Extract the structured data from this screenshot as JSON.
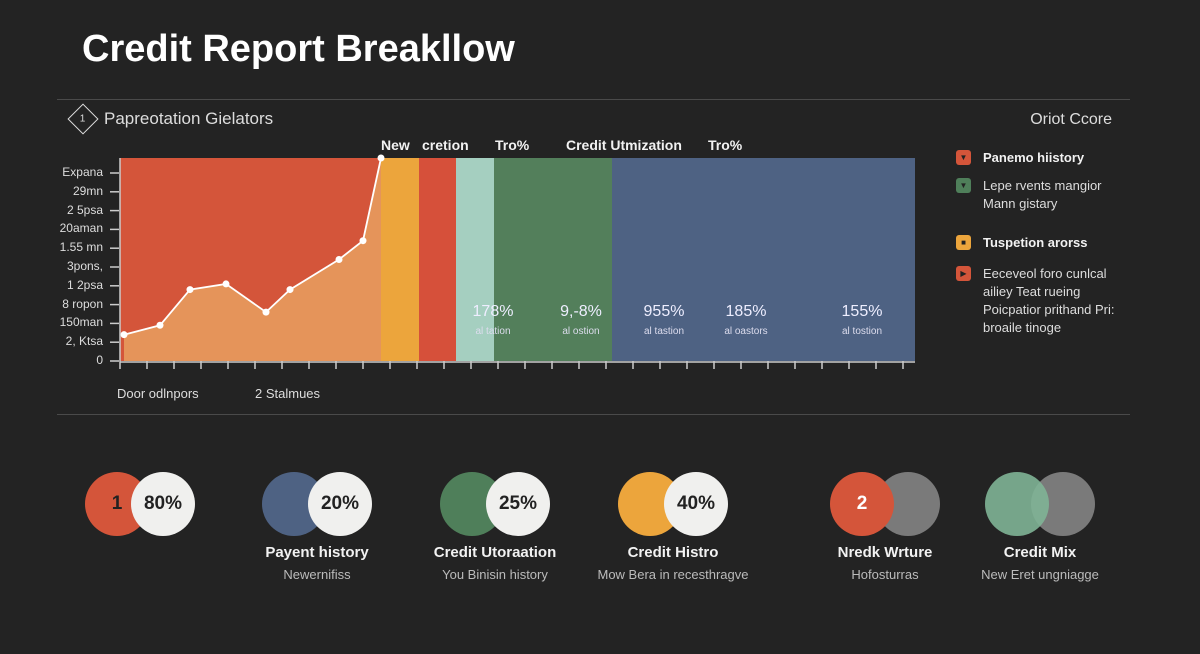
{
  "title": "Credit Report Breakllow",
  "subtitle": "Papreotation Gielators",
  "subtitle_icon": "diamond-info-icon",
  "score_label": "Oriot Ccore",
  "chart_data": {
    "type": "area",
    "band_labels": [
      "New",
      "cretion",
      "Tro%",
      "Credit Utmization",
      "Tro%"
    ],
    "yticks": [
      "Expana",
      "29mn",
      "2 5psa",
      "20aman",
      "1.55 mn",
      "3pons,",
      "1 2psa",
      "8 ropon",
      "150man",
      "2, Ktsa",
      "0"
    ],
    "ylim": [
      0,
      10.8
    ],
    "series": [
      {
        "values": [
          1.4,
          1.9,
          3.8,
          4.1,
          2.6,
          3.8,
          5.4,
          6.4,
          10.8
        ],
        "color": "#e8a060"
      }
    ],
    "bands": [
      {
        "color": "#d4553a"
      },
      {
        "color": "#eca53c"
      },
      {
        "color": "#d6503a"
      },
      {
        "color": "#a5cfc0"
      },
      {
        "color": "#537f5b"
      },
      {
        "color": "#4e6283"
      }
    ],
    "annotations": [
      {
        "value": "178%",
        "sub": "al tation"
      },
      {
        "value": "9,-8%",
        "sub": "al ostion"
      },
      {
        "value": "955%",
        "sub": "al tastion"
      },
      {
        "value": "185%",
        "sub": "al oastors"
      },
      {
        "value": "155%",
        "sub": "al tostion"
      }
    ],
    "xlabels": [
      "Door odlnpors",
      "2  Stalmues"
    ]
  },
  "legend": [
    {
      "title": "Panemo hiistory",
      "lines": [],
      "color": "#d4553a",
      "icon": "chevron-down-icon"
    },
    {
      "title": "",
      "lines": [
        "Lepe rvents mangior",
        "Mann gistary"
      ],
      "color": "#4f7f5a",
      "icon": "chevron-down-icon"
    },
    {
      "title": "Tuspetion arorss",
      "lines": [],
      "color": "#eca53c",
      "icon": "square-icon"
    },
    {
      "title": "",
      "lines": [
        "Eeceveol foro cunlcal",
        "ailiey Teat rueing",
        "Poicpatior prithand Pri:",
        "broaile tinoge"
      ],
      "color": "#d4553a",
      "icon": "play-icon"
    }
  ],
  "cards": [
    {
      "left": "1",
      "right": "80%",
      "name": "",
      "desc": "",
      "c1": "#d4553a",
      "c2": "#f0f0ee"
    },
    {
      "left": "",
      "right": "20%",
      "name": "Payent history",
      "desc": "Newernifiss",
      "c1": "#4e6283",
      "c2": "#f0f0ee"
    },
    {
      "left": "",
      "right": "25%",
      "name": "Credit Utoraation",
      "desc": "You Binisin history",
      "c1": "#4f7f5a",
      "c2": "#f0f0ee"
    },
    {
      "left": "",
      "right": "40%",
      "name": "Credit Histro",
      "desc": "Mow Bera in recesthragve",
      "c1": "#eca53c",
      "c2": "#f0f0ee"
    },
    {
      "left": "2",
      "right": "",
      "name": "Nredk Wrture",
      "desc": "Hofosturras",
      "c1": "#d4553a",
      "c2": "#7a7a7a"
    },
    {
      "left": "",
      "right": "",
      "name": "Credit Mix",
      "desc": "New Eret ungniagge",
      "c1": "#7fb496",
      "c2": "#7a7a7a"
    }
  ]
}
